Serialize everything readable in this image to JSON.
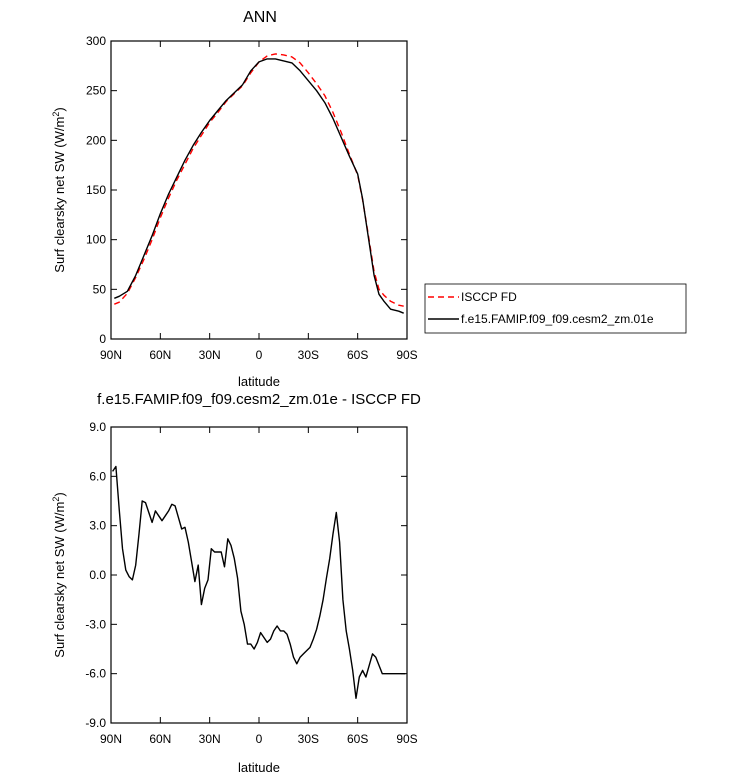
{
  "chart_data": [
    {
      "type": "line",
      "title": "ANN",
      "xlabel": "latitude",
      "ylabel": "Surf clearsky net SW (W/m",
      "ylabel_sup": "2",
      "ylabel_close": ")",
      "xlim": [
        90,
        -90
      ],
      "ylim": [
        0,
        300
      ],
      "xticks": [
        90,
        60,
        30,
        0,
        -30,
        -60,
        -90
      ],
      "xtick_labels": [
        "90N",
        "60N",
        "30N",
        "0",
        "30S",
        "60S",
        "90S"
      ],
      "yticks": [
        0,
        50,
        100,
        150,
        200,
        250,
        300
      ],
      "ytick_labels": [
        "0",
        "50",
        "100",
        "150",
        "200",
        "250",
        "300"
      ],
      "grid": false,
      "legend_placement": "outside-right",
      "series": [
        {
          "name": "ISCCP FD",
          "color": "#ff0000",
          "dash": "dashed",
          "x": [
            88,
            85,
            80,
            75,
            70,
            65,
            60,
            55,
            50,
            45,
            40,
            35,
            30,
            25,
            20,
            15,
            10,
            5,
            0,
            -5,
            -10,
            -15,
            -20,
            -25,
            -30,
            -35,
            -40,
            -45,
            -50,
            -55,
            -60,
            -63,
            -66,
            -70,
            -73,
            -76,
            -80,
            -85,
            -88
          ],
          "y": [
            35,
            37,
            46,
            62,
            80,
            100,
            122,
            142,
            160,
            176,
            192,
            205,
            218,
            228,
            239,
            247,
            255,
            268,
            279,
            285,
            287,
            286,
            284,
            278,
            268,
            257,
            245,
            228,
            208,
            186,
            165,
            140,
            110,
            68,
            50,
            44,
            38,
            34,
            33
          ]
        },
        {
          "name": "f.e15.FAMIP.f09_f09.cesm2_zm.01e",
          "color": "#000000",
          "dash": "solid",
          "x": [
            88,
            85,
            80,
            75,
            70,
            65,
            60,
            55,
            50,
            45,
            40,
            35,
            30,
            25,
            20,
            15,
            10,
            5,
            0,
            -5,
            -10,
            -15,
            -20,
            -25,
            -30,
            -35,
            -40,
            -45,
            -50,
            -55,
            -60,
            -63,
            -66,
            -70,
            -73,
            -76,
            -80,
            -85,
            -88
          ],
          "y": [
            41,
            43,
            48,
            64,
            84,
            104,
            126,
            146,
            163,
            180,
            195,
            208,
            220,
            230,
            240,
            248,
            256,
            270,
            279,
            282,
            282,
            280,
            278,
            270,
            260,
            250,
            238,
            222,
            203,
            184,
            166,
            141,
            108,
            64,
            45,
            38,
            30,
            28,
            26
          ]
        }
      ]
    },
    {
      "type": "line",
      "title": "f.e15.FAMIP.f09_f09.cesm2_zm.01e - ISCCP FD",
      "xlabel": "latitude",
      "ylabel": "Surf clearsky net SW (W/m",
      "ylabel_sup": "2",
      "ylabel_close": ")",
      "xlim": [
        90,
        -90
      ],
      "ylim": [
        -9,
        9
      ],
      "xticks": [
        90,
        60,
        30,
        0,
        -30,
        -60,
        -90
      ],
      "xtick_labels": [
        "90N",
        "60N",
        "30N",
        "0",
        "30S",
        "60S",
        "90S"
      ],
      "yticks": [
        -9,
        -6,
        -3,
        0,
        3,
        6,
        9
      ],
      "ytick_labels": [
        "-9.0",
        "-6.0",
        "-3.0",
        "0.0",
        "3.0",
        "6.0",
        "9.0"
      ],
      "grid": false,
      "series": [
        {
          "color": "#000000",
          "dash": "solid",
          "x": [
            89,
            87,
            85,
            83,
            81,
            79,
            77,
            75,
            73,
            71,
            69,
            67,
            65,
            63,
            61,
            59,
            57,
            55,
            53,
            51,
            49,
            47,
            45,
            43,
            41,
            39,
            37,
            35,
            33,
            31,
            29,
            27,
            25,
            23,
            21,
            19,
            17,
            15,
            13,
            11,
            9,
            7,
            5,
            3,
            1,
            -1,
            -3,
            -5,
            -7,
            -9,
            -11,
            -13,
            -15,
            -17,
            -19,
            -21,
            -23,
            -25,
            -27,
            -29,
            -31,
            -33,
            -35,
            -37,
            -39,
            -41,
            -43,
            -45,
            -47,
            -49,
            -51,
            -53,
            -55,
            -57,
            -59,
            -61,
            -63,
            -65,
            -67,
            -69,
            -71,
            -73,
            -75,
            -77,
            -79,
            -81,
            -83,
            -85,
            -87,
            -89
          ],
          "y": [
            6.3,
            6.6,
            4.0,
            1.6,
            0.3,
            -0.1,
            -0.3,
            0.6,
            2.5,
            4.5,
            4.4,
            3.8,
            3.2,
            3.9,
            3.6,
            3.3,
            3.6,
            3.9,
            4.3,
            4.2,
            3.5,
            2.8,
            2.9,
            2.0,
            0.8,
            -0.4,
            0.6,
            -1.8,
            -0.8,
            -0.3,
            1.6,
            1.4,
            1.4,
            1.4,
            0.5,
            2.2,
            1.8,
            1.0,
            -0.2,
            -2.2,
            -3.0,
            -4.2,
            -4.2,
            -4.5,
            -4.1,
            -3.5,
            -3.8,
            -4.1,
            -3.9,
            -3.4,
            -3.1,
            -3.4,
            -3.4,
            -3.6,
            -4.2,
            -5.0,
            -5.4,
            -5.0,
            -4.8,
            -4.6,
            -4.4,
            -3.9,
            -3.3,
            -2.5,
            -1.5,
            -0.2,
            1.0,
            2.5,
            3.8,
            2.0,
            -1.5,
            -3.4,
            -4.5,
            -5.8,
            -7.5,
            -6.2,
            -5.8,
            -6.2,
            -5.5,
            -4.8,
            -5.0,
            -5.5,
            -6.0,
            -6.0,
            -6.0,
            -6.0,
            -6.0,
            -6.0,
            -6.0,
            -6.0
          ]
        }
      ]
    }
  ]
}
